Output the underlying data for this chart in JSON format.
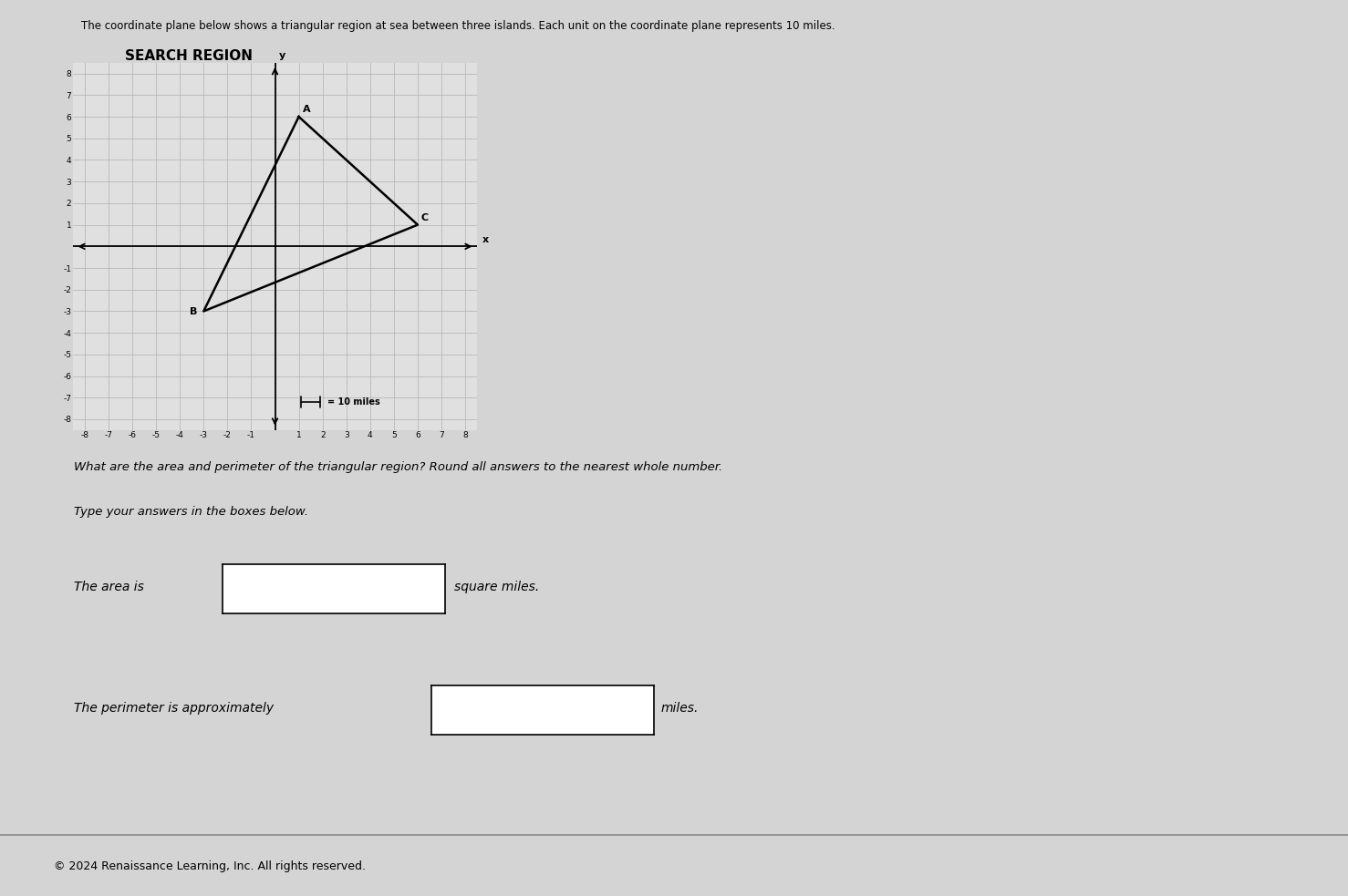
{
  "title_main": "The coordinate plane below shows a triangular region at sea between three islands. Each unit on the coordinate plane represents 10 miles.",
  "search_region_label": "SEARCH REGION",
  "triangle_vertices": {
    "A": [
      1,
      6
    ],
    "B": [
      -3,
      -3
    ],
    "C": [
      6,
      1
    ]
  },
  "vertex_label_offsets": {
    "A": [
      0.15,
      0.15
    ],
    "B": [
      -0.6,
      -0.25
    ],
    "C": [
      0.15,
      0.1
    ]
  },
  "axis_xlim": [
    -8.5,
    8.5
  ],
  "axis_ylim": [
    -8.5,
    8.5
  ],
  "x_ticks": [
    -8,
    -7,
    -6,
    -5,
    -4,
    -3,
    -2,
    -1,
    0,
    1,
    2,
    3,
    4,
    5,
    6,
    7,
    8
  ],
  "y_ticks": [
    -8,
    -7,
    -6,
    -5,
    -4,
    -3,
    -2,
    -1,
    0,
    1,
    2,
    3,
    4,
    5,
    6,
    7,
    8
  ],
  "grid_color": "#b8b8b8",
  "triangle_color": "#000000",
  "triangle_linewidth": 1.8,
  "scale_x1": 1.0,
  "scale_x2": 2.0,
  "scale_y": -7.2,
  "scale_text": "= 10 miles",
  "question_text": "What are the area and perimeter of the triangular region? Round all answers to the nearest whole number.",
  "instruction_text": "Type your answers in the boxes below.",
  "area_label": "The area is",
  "area_unit": "square miles.",
  "perimeter_label": "The perimeter is approximately",
  "perimeter_unit": "miles.",
  "copyright_text": "© 2024 Renaissance Learning, Inc. All rights reserved.",
  "bg_color": "#c8c8c8",
  "content_bg_color": "#d4d4d4",
  "plot_bg_color": "#e0e0e0",
  "box_color": "#ffffff",
  "font_color": "#000000",
  "grid_minor_color": "#c0c0c0"
}
